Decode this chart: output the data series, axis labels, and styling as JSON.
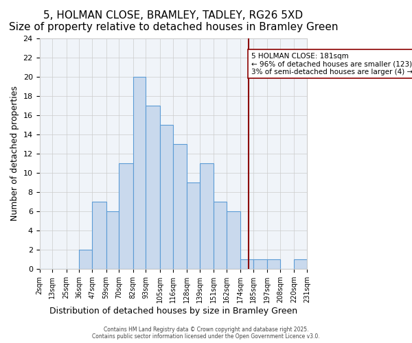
{
  "title": "5, HOLMAN CLOSE, BRAMLEY, TADLEY, RG26 5XD",
  "subtitle": "Size of property relative to detached houses in Bramley Green",
  "xlabel": "Distribution of detached houses by size in Bramley Green",
  "ylabel": "Number of detached properties",
  "bin_edges": [
    2,
    13,
    25,
    36,
    47,
    59,
    70,
    82,
    93,
    105,
    116,
    128,
    139,
    151,
    162,
    174,
    185,
    197,
    208,
    220,
    231
  ],
  "bin_labels": [
    "2sqm",
    "13sqm",
    "25sqm",
    "36sqm",
    "47sqm",
    "59sqm",
    "70sqm",
    "82sqm",
    "93sqm",
    "105sqm",
    "116sqm",
    "128sqm",
    "139sqm",
    "151sqm",
    "162sqm",
    "174sqm",
    "185sqm",
    "197sqm",
    "208sqm",
    "220sqm",
    "231sqm"
  ],
  "counts": [
    0,
    0,
    0,
    2,
    7,
    6,
    11,
    20,
    17,
    15,
    13,
    9,
    11,
    7,
    6,
    1,
    1,
    1,
    0,
    1
  ],
  "bar_facecolor": "#c9d9ed",
  "bar_edgecolor": "#5b9bd5",
  "bar_linewidth": 0.8,
  "vline_x": 181,
  "vline_color": "#8b0000",
  "vline_linewidth": 1.5,
  "annotation_title": "5 HOLMAN CLOSE: 181sqm",
  "annotation_line1": "← 96% of detached houses are smaller (123)",
  "annotation_line2": "3% of semi-detached houses are larger (4) →",
  "annotation_box_edgecolor": "#8b0000",
  "annotation_box_facecolor": "#ffffff",
  "ylim": [
    0,
    24
  ],
  "yticks": [
    0,
    2,
    4,
    6,
    8,
    10,
    12,
    14,
    16,
    18,
    20,
    22,
    24
  ],
  "grid_color": "#cccccc",
  "grid_linewidth": 0.5,
  "bg_color": "#f0f4f9",
  "footer1": "Contains HM Land Registry data © Crown copyright and database right 2025.",
  "footer2": "Contains public sector information licensed under the Open Government Licence v3.0.",
  "title_fontsize": 11,
  "subtitle_fontsize": 9,
  "xlabel_fontsize": 9,
  "ylabel_fontsize": 9,
  "annotation_fontsize": 7.5
}
